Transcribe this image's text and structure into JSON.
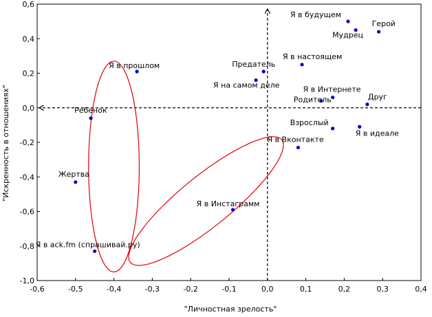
{
  "chart_data": {
    "type": "scatter",
    "title": "",
    "xlabel": "\"Личностная зрелость\"",
    "ylabel": "\"Искренность в отношениях\"",
    "xlim": [
      -0.6,
      0.4
    ],
    "ylim": [
      -1.0,
      0.6
    ],
    "xticks": [
      "-0,6",
      "-0,5",
      "-0,4",
      "-0,3",
      "-0,2",
      "-0,1",
      "0,0",
      "0,1",
      "0,2",
      "0,3",
      "0,4"
    ],
    "yticks": [
      "0,6",
      "0,4",
      "0,2",
      "0,0",
      "-0,2",
      "-0,4",
      "-0,6",
      "-0,8",
      "-1,0"
    ],
    "xtick_values": [
      -0.6,
      -0.5,
      -0.4,
      -0.3,
      -0.2,
      -0.1,
      0.0,
      0.1,
      0.2,
      0.3,
      0.4
    ],
    "ytick_values": [
      0.6,
      0.4,
      0.2,
      0.0,
      -0.2,
      -0.4,
      -0.6,
      -0.8,
      -1.0
    ],
    "grid": false,
    "reference_lines": {
      "x": 0.0,
      "y": 0.0,
      "style": "dashed",
      "arrows": true
    },
    "marker_color": "#0000cc",
    "ellipse_color": "#e00000",
    "points": [
      {
        "label": "Я в будущем",
        "x": 0.21,
        "y": 0.5
      },
      {
        "label": "Герой",
        "x": 0.29,
        "y": 0.44
      },
      {
        "label": "Мудрец",
        "x": 0.23,
        "y": 0.45
      },
      {
        "label": "Я в настоящем",
        "x": 0.09,
        "y": 0.25
      },
      {
        "label": "Предатель",
        "x": -0.01,
        "y": 0.21
      },
      {
        "label": "Я в прошлом",
        "x": -0.34,
        "y": 0.21
      },
      {
        "label": "Я на самом деле",
        "x": -0.03,
        "y": 0.16
      },
      {
        "label": "Я в Интернете",
        "x": 0.17,
        "y": 0.06
      },
      {
        "label": "Родитель",
        "x": 0.14,
        "y": 0.04
      },
      {
        "label": "Друг",
        "x": 0.26,
        "y": 0.02
      },
      {
        "label": "Ребенок",
        "x": -0.46,
        "y": -0.06
      },
      {
        "label": "Взрослый",
        "x": 0.17,
        "y": -0.12
      },
      {
        "label": "Я в идеале",
        "x": 0.24,
        "y": -0.11
      },
      {
        "label": "Я в Вконтакте",
        "x": 0.08,
        "y": -0.23
      },
      {
        "label": "Жертва",
        "x": -0.5,
        "y": -0.43
      },
      {
        "label": "Я в Инстаграмм",
        "x": -0.09,
        "y": -0.59
      },
      {
        "label": "Я в ack.fm (спрашивай.ру)",
        "x": -0.45,
        "y": -0.83
      }
    ],
    "ellipses": [
      {
        "cx": -0.4,
        "cy": -0.34,
        "rx": 0.066,
        "ry": 0.61,
        "angle": 0
      },
      {
        "cx": -0.16,
        "cy": -0.54,
        "rx": 0.35,
        "ry": 0.091,
        "angle": -39
      }
    ]
  }
}
